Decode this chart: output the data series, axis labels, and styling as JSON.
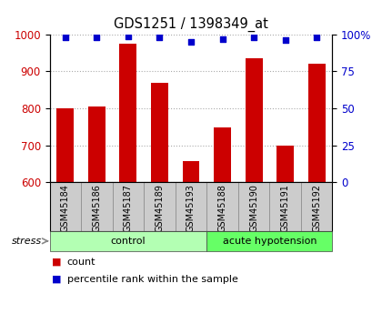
{
  "title": "GDS1251 / 1398349_at",
  "samples": [
    "GSM45184",
    "GSM45186",
    "GSM45187",
    "GSM45189",
    "GSM45193",
    "GSM45188",
    "GSM45190",
    "GSM45191",
    "GSM45192"
  ],
  "counts": [
    800,
    805,
    975,
    870,
    658,
    748,
    935,
    700,
    920
  ],
  "percentiles": [
    98,
    98,
    99,
    98,
    95,
    97,
    98,
    96,
    98
  ],
  "groups": [
    "control",
    "control",
    "control",
    "control",
    "control",
    "acute hypotension",
    "acute hypotension",
    "acute hypotension",
    "acute hypotension"
  ],
  "group_colors": {
    "control": "#b3ffb3",
    "acute hypotension": "#66ff66"
  },
  "bar_color": "#cc0000",
  "dot_color": "#0000cc",
  "ylim_left": [
    600,
    1000
  ],
  "yticks_left": [
    600,
    700,
    800,
    900,
    1000
  ],
  "yticks_right": [
    0,
    25,
    50,
    75,
    100
  ],
  "yticklabels_right": [
    "0",
    "25",
    "50",
    "75",
    "100%"
  ],
  "grid_color": "#aaaaaa",
  "label_color_left": "#cc0000",
  "label_color_right": "#0000cc",
  "bg_color": "#ffffff",
  "sample_bg_color": "#cccccc",
  "legend_count_label": "count",
  "legend_pct_label": "percentile rank within the sample",
  "stress_label": "stress",
  "bar_width": 0.55,
  "n_control": 5,
  "n_acute": 4
}
